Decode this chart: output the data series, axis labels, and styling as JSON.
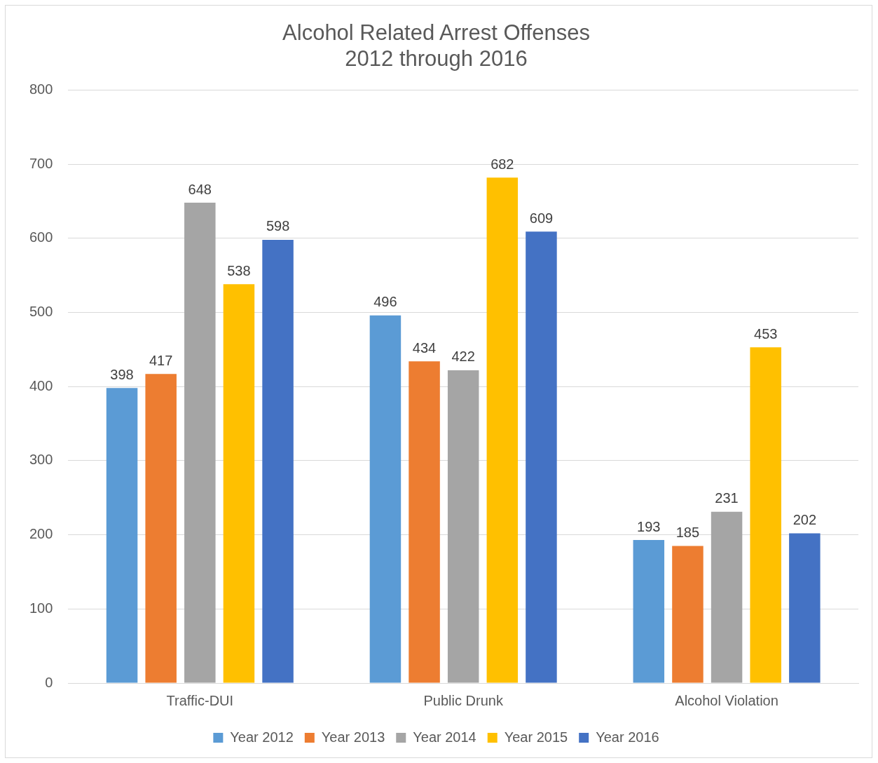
{
  "chart_data": {
    "type": "bar",
    "title": "Alcohol Related Arrest Offenses\n2012 through 2016",
    "categories": [
      "Traffic-DUI",
      "Public Drunk",
      "Alcohol Violation"
    ],
    "series": [
      {
        "name": "Year 2012",
        "color": "#5b9bd5",
        "values": [
          398,
          496,
          193
        ]
      },
      {
        "name": "Year 2013",
        "color": "#ed7d31",
        "values": [
          417,
          434,
          185
        ]
      },
      {
        "name": "Year 2014",
        "color": "#a5a5a5",
        "values": [
          648,
          422,
          231
        ]
      },
      {
        "name": "Year 2015",
        "color": "#ffc000",
        "values": [
          538,
          682,
          453
        ]
      },
      {
        "name": "Year 2016",
        "color": "#4472c4",
        "values": [
          598,
          609,
          202
        ]
      }
    ],
    "ylim": [
      0,
      800
    ],
    "yticks": [
      0,
      100,
      200,
      300,
      400,
      500,
      600,
      700,
      800
    ],
    "grid": "y",
    "legend": "bottom",
    "data_labels": true
  }
}
